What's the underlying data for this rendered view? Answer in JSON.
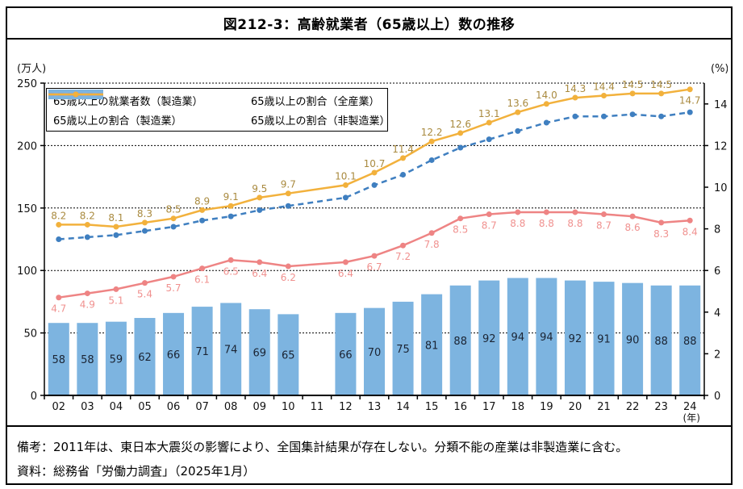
{
  "title": "図212-3：高齢就業者（65歳以上）数の推移",
  "notes": {
    "remark": "備考：2011年は、東日本大震災の影響により、全国集計結果が存在しない。分類不能の産業は非製造業に含む。",
    "source": "資料：総務省「労働力調査」（2025年1月）"
  },
  "legend": [
    {
      "label": "65歳以上の就業者数（製造業）",
      "swatch": "bar",
      "color": "#7db4e0"
    },
    {
      "label": "65歳以上の割合（全産業）",
      "swatch": "dashed-line",
      "color": "#3f7fc0"
    },
    {
      "label": "65歳以上の割合（製造業）",
      "swatch": "solid-line",
      "color": "#ee8484"
    },
    {
      "label": "65歳以上の割合（非製造業）",
      "swatch": "solid-line",
      "color": "#f2b13c"
    }
  ],
  "chart_data": {
    "type": "bar+line combo, dual axis",
    "categories": [
      "02",
      "03",
      "04",
      "05",
      "06",
      "07",
      "08",
      "09",
      "10",
      "11",
      "12",
      "13",
      "14",
      "15",
      "16",
      "17",
      "18",
      "19",
      "20",
      "21",
      "22",
      "23",
      "24"
    ],
    "categories_suffix": "(年)",
    "left_axis": {
      "unit": "(万人)",
      "min": 0,
      "max": 250,
      "tick_labels": [
        "0",
        "50",
        "100",
        "150",
        "200",
        "250"
      ]
    },
    "right_axis": {
      "unit": "(%)",
      "min": 0,
      "max": 15,
      "tick_labels": [
        "0",
        "2",
        "4",
        "6",
        "8",
        "10",
        "12",
        "14"
      ]
    },
    "grid": "horizontal dotted lines at left-axis 50/100/150/200/250 (= right-axis 3/6/9/12/15)",
    "missing_year_note": "2011 (11) has no data for any series",
    "bar_series": {
      "name": "65歳以上の就業者数（製造業）",
      "axis": "left",
      "color": "#7db4e0",
      "label_color": "#1b2433",
      "values": [
        58,
        58,
        59,
        62,
        66,
        71,
        74,
        69,
        65,
        null,
        66,
        70,
        75,
        81,
        88,
        92,
        94,
        94,
        92,
        91,
        90,
        88,
        88
      ]
    },
    "line_series": [
      {
        "name": "65歳以上の割合（全産業）",
        "axis": "right",
        "style": "dashed",
        "color": "#3f7fc0",
        "labels_shown": false,
        "values": [
          7.5,
          7.6,
          7.7,
          7.9,
          8.1,
          8.4,
          8.6,
          8.9,
          9.1,
          null,
          9.5,
          10.1,
          10.6,
          11.3,
          11.9,
          12.3,
          12.7,
          13.1,
          13.4,
          13.4,
          13.5,
          13.4,
          13.6
        ]
      },
      {
        "name": "65歳以上の割合（製造業）",
        "axis": "right",
        "style": "solid",
        "color": "#ee8484",
        "label_color": "#f0918f",
        "labels_shown": true,
        "values": [
          4.7,
          4.9,
          5.1,
          5.4,
          5.7,
          6.1,
          6.5,
          6.4,
          6.2,
          null,
          6.4,
          6.7,
          7.2,
          7.8,
          8.5,
          8.7,
          8.8,
          8.8,
          8.8,
          8.7,
          8.6,
          8.3,
          8.4
        ]
      },
      {
        "name": "65歳以上の割合（非製造業）",
        "axis": "right",
        "style": "solid",
        "color": "#f2b13c",
        "label_color": "#a98a3f",
        "labels_shown": true,
        "values": [
          8.2,
          8.2,
          8.1,
          8.3,
          8.5,
          8.9,
          9.1,
          9.5,
          9.7,
          null,
          10.1,
          10.7,
          11.4,
          12.2,
          12.6,
          13.1,
          13.6,
          14.0,
          14.3,
          14.4,
          14.5,
          14.5,
          14.7
        ]
      }
    ]
  }
}
